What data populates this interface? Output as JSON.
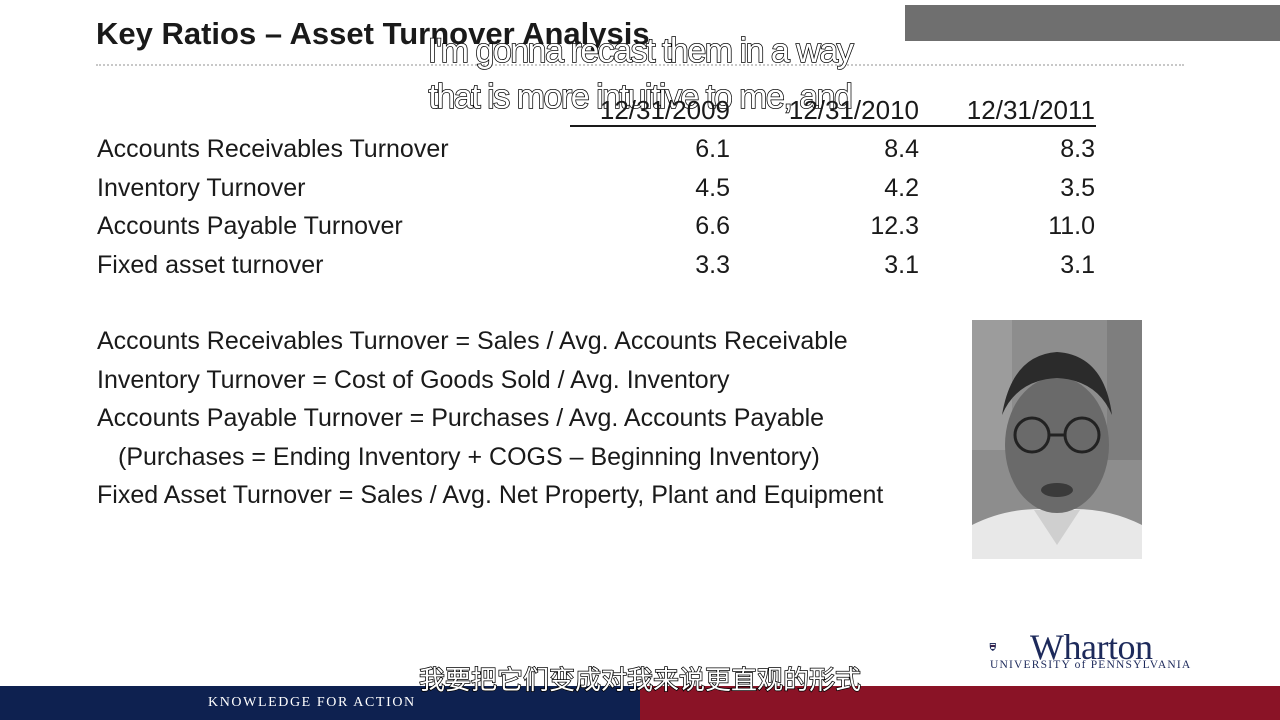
{
  "slide": {
    "title": "Key Ratios – Asset Turnover Analysis"
  },
  "table": {
    "columns": [
      "12/31/2009",
      "12/31/2010",
      "12/31/2011"
    ],
    "rows": [
      {
        "label": "Accounts Receivables Turnover",
        "values": [
          "6.1",
          "8.4",
          "8.3"
        ]
      },
      {
        "label": "Inventory Turnover",
        "values": [
          "4.5",
          "4.2",
          "3.5"
        ]
      },
      {
        "label": "Accounts Payable Turnover",
        "values": [
          "6.6",
          "12.3",
          "11.0"
        ]
      },
      {
        "label": "Fixed asset turnover",
        "values": [
          "3.3",
          "3.1",
          "3.1"
        ]
      }
    ]
  },
  "formulas": [
    "Accounts Receivables Turnover = Sales / Avg. Accounts Receivable",
    "Inventory Turnover = Cost of Goods Sold / Avg. Inventory",
    "Accounts Payable Turnover = Purchases / Avg. Accounts Payable",
    "(Purchases = Ending Inventory + COGS – Beginning Inventory)",
    "Fixed Asset Turnover = Sales / Avg. Net Property, Plant and Equipment"
  ],
  "subtitles": {
    "english_line1": "I'm gonna recast them in a way",
    "english_line2": "that is more intuitive to me, and",
    "chinese": "我要把它们变成对我来说更直观的形式"
  },
  "branding": {
    "logo_name": "Wharton",
    "logo_subtitle": "UNIVERSITY of PENNSYLVANIA",
    "footer_tagline": "KNOWLEDGE FOR ACTION",
    "navy": "#0e2150",
    "crimson": "#8a1326"
  }
}
